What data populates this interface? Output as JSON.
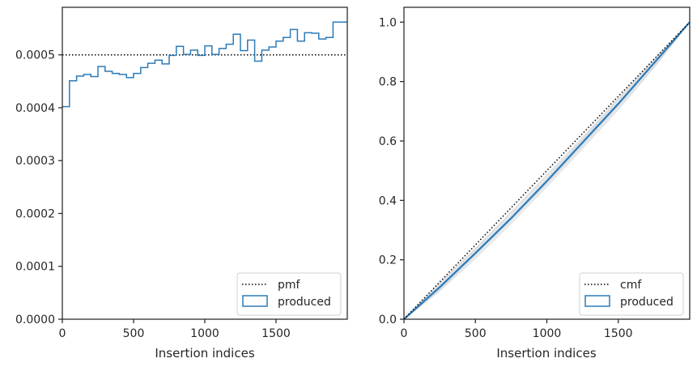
{
  "chart_data": [
    {
      "type": "line",
      "subtype": "step-histogram",
      "xlabel": "Insertion indices",
      "ylabel": "",
      "xlim": [
        0,
        2000
      ],
      "ylim": [
        0,
        0.00059
      ],
      "xticks": [
        0,
        500,
        1000,
        1500
      ],
      "xtick_labels": [
        "0",
        "500",
        "1000",
        "1500"
      ],
      "yticks": [
        0,
        0.0001,
        0.0002,
        0.0003,
        0.0004,
        0.0005
      ],
      "ytick_labels": [
        "0.0000",
        "0.0001",
        "0.0002",
        "0.0003",
        "0.0004",
        "0.0005"
      ],
      "reference_line": {
        "name": "pmf",
        "y": 0.0005,
        "style": "dotted",
        "color": "#000000"
      },
      "bin_edges": [
        0,
        50,
        100,
        150,
        200,
        250,
        300,
        350,
        400,
        450,
        500,
        550,
        600,
        650,
        700,
        750,
        800,
        850,
        900,
        950,
        1000,
        1050,
        1100,
        1150,
        1200,
        1250,
        1300,
        1350,
        1400,
        1450,
        1500,
        1550,
        1600,
        1650,
        1700,
        1750,
        1800,
        1850,
        1900,
        1950,
        2000
      ],
      "series": [
        {
          "name": "produced",
          "color": "#2b7bb9",
          "values": [
            0.000402,
            0.000451,
            0.00046,
            0.000463,
            0.000459,
            0.000478,
            0.000469,
            0.000465,
            0.000463,
            0.000457,
            0.000465,
            0.000476,
            0.000484,
            0.00049,
            0.000483,
            0.000499,
            0.000516,
            0.000501,
            0.000509,
            0.000499,
            0.000517,
            0.000501,
            0.000512,
            0.00052,
            0.000539,
            0.000508,
            0.000528,
            0.000488,
            0.000509,
            0.000515,
            0.000526,
            0.000533,
            0.000548,
            0.000526,
            0.000542,
            0.000541,
            0.00053,
            0.000533,
            0.000562,
            0.000562
          ]
        }
      ],
      "legend": {
        "position": "lower-right",
        "entries": [
          "pmf",
          "produced"
        ]
      },
      "grid": false
    },
    {
      "type": "line",
      "xlabel": "Insertion indices",
      "ylabel": "",
      "xlim": [
        0,
        2000
      ],
      "ylim": [
        0,
        1.05
      ],
      "xticks": [
        0,
        500,
        1000,
        1500
      ],
      "xtick_labels": [
        "0",
        "500",
        "1000",
        "1500"
      ],
      "yticks": [
        0,
        0.2,
        0.4,
        0.6,
        0.8,
        1.0
      ],
      "ytick_labels": [
        "0.0",
        "0.2",
        "0.4",
        "0.6",
        "0.8",
        "1.0"
      ],
      "reference_line": {
        "name": "cmf",
        "points": [
          [
            0,
            0
          ],
          [
            2000,
            1
          ]
        ],
        "style": "dotted",
        "color": "#000000"
      },
      "series": [
        {
          "name": "produced",
          "color": "#2b7bb9",
          "x": [
            0,
            250,
            500,
            750,
            1000,
            1250,
            1500,
            1750,
            2000
          ],
          "y": [
            0,
            0.108,
            0.222,
            0.34,
            0.465,
            0.595,
            0.725,
            0.862,
            1.0
          ]
        }
      ],
      "light_series": {
        "color": "#c9cdd2",
        "x": [
          0,
          250,
          500,
          750,
          1000,
          1250,
          1500,
          1750,
          2000
        ],
        "runs": [
          [
            0,
            0.1,
            0.212,
            0.33,
            0.455,
            0.582,
            0.713,
            0.852,
            1.0
          ],
          [
            0,
            0.118,
            0.234,
            0.355,
            0.48,
            0.606,
            0.738,
            0.87,
            1.0
          ],
          [
            0,
            0.095,
            0.205,
            0.322,
            0.447,
            0.575,
            0.706,
            0.847,
            1.0
          ],
          [
            0,
            0.112,
            0.228,
            0.348,
            0.473,
            0.603,
            0.731,
            0.866,
            1.0
          ],
          [
            0,
            0.103,
            0.218,
            0.336,
            0.459,
            0.588,
            0.719,
            0.858,
            1.0
          ],
          [
            0,
            0.121,
            0.238,
            0.36,
            0.486,
            0.612,
            0.742,
            0.874,
            1.0
          ]
        ]
      },
      "legend": {
        "position": "lower-right",
        "entries": [
          "cmf",
          "produced"
        ]
      },
      "grid": false
    }
  ]
}
